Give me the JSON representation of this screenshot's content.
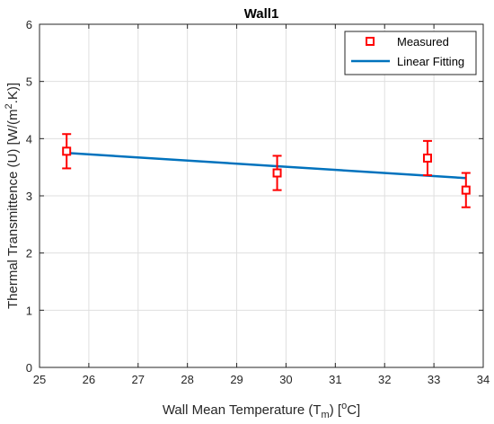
{
  "chart_data": {
    "type": "scatter",
    "title": "Wall1",
    "xlabel": {
      "prefix": "Wall Mean Temperature (T",
      "sub": "m",
      "mid": ") [",
      "sup": "o",
      "suffix": "C]"
    },
    "ylabel": {
      "prefix": "Thermal Transmittence (U) [W/(m",
      "sup": "2",
      "suffix": ".K)]"
    },
    "xlim": [
      25,
      34
    ],
    "ylim": [
      0,
      6
    ],
    "xticks": [
      "25",
      "26",
      "27",
      "28",
      "29",
      "30",
      "31",
      "32",
      "33",
      "34"
    ],
    "yticks": [
      "0",
      "1",
      "2",
      "3",
      "4",
      "5",
      "6"
    ],
    "grid": true,
    "legend_position": "top-right",
    "series": [
      {
        "name": "Measured",
        "marker": "square",
        "color": "#ff0000",
        "points": [
          {
            "x": 25.55,
            "y": 3.78,
            "err": 0.3
          },
          {
            "x": 29.82,
            "y": 3.4,
            "err": 0.3
          },
          {
            "x": 32.87,
            "y": 3.66,
            "err": 0.3
          },
          {
            "x": 33.65,
            "y": 3.1,
            "err": 0.3
          }
        ]
      },
      {
        "name": "Linear Fitting",
        "type": "line",
        "color": "#0072bd",
        "x": [
          25.55,
          33.65
        ],
        "y": [
          3.75,
          3.31
        ]
      }
    ]
  }
}
